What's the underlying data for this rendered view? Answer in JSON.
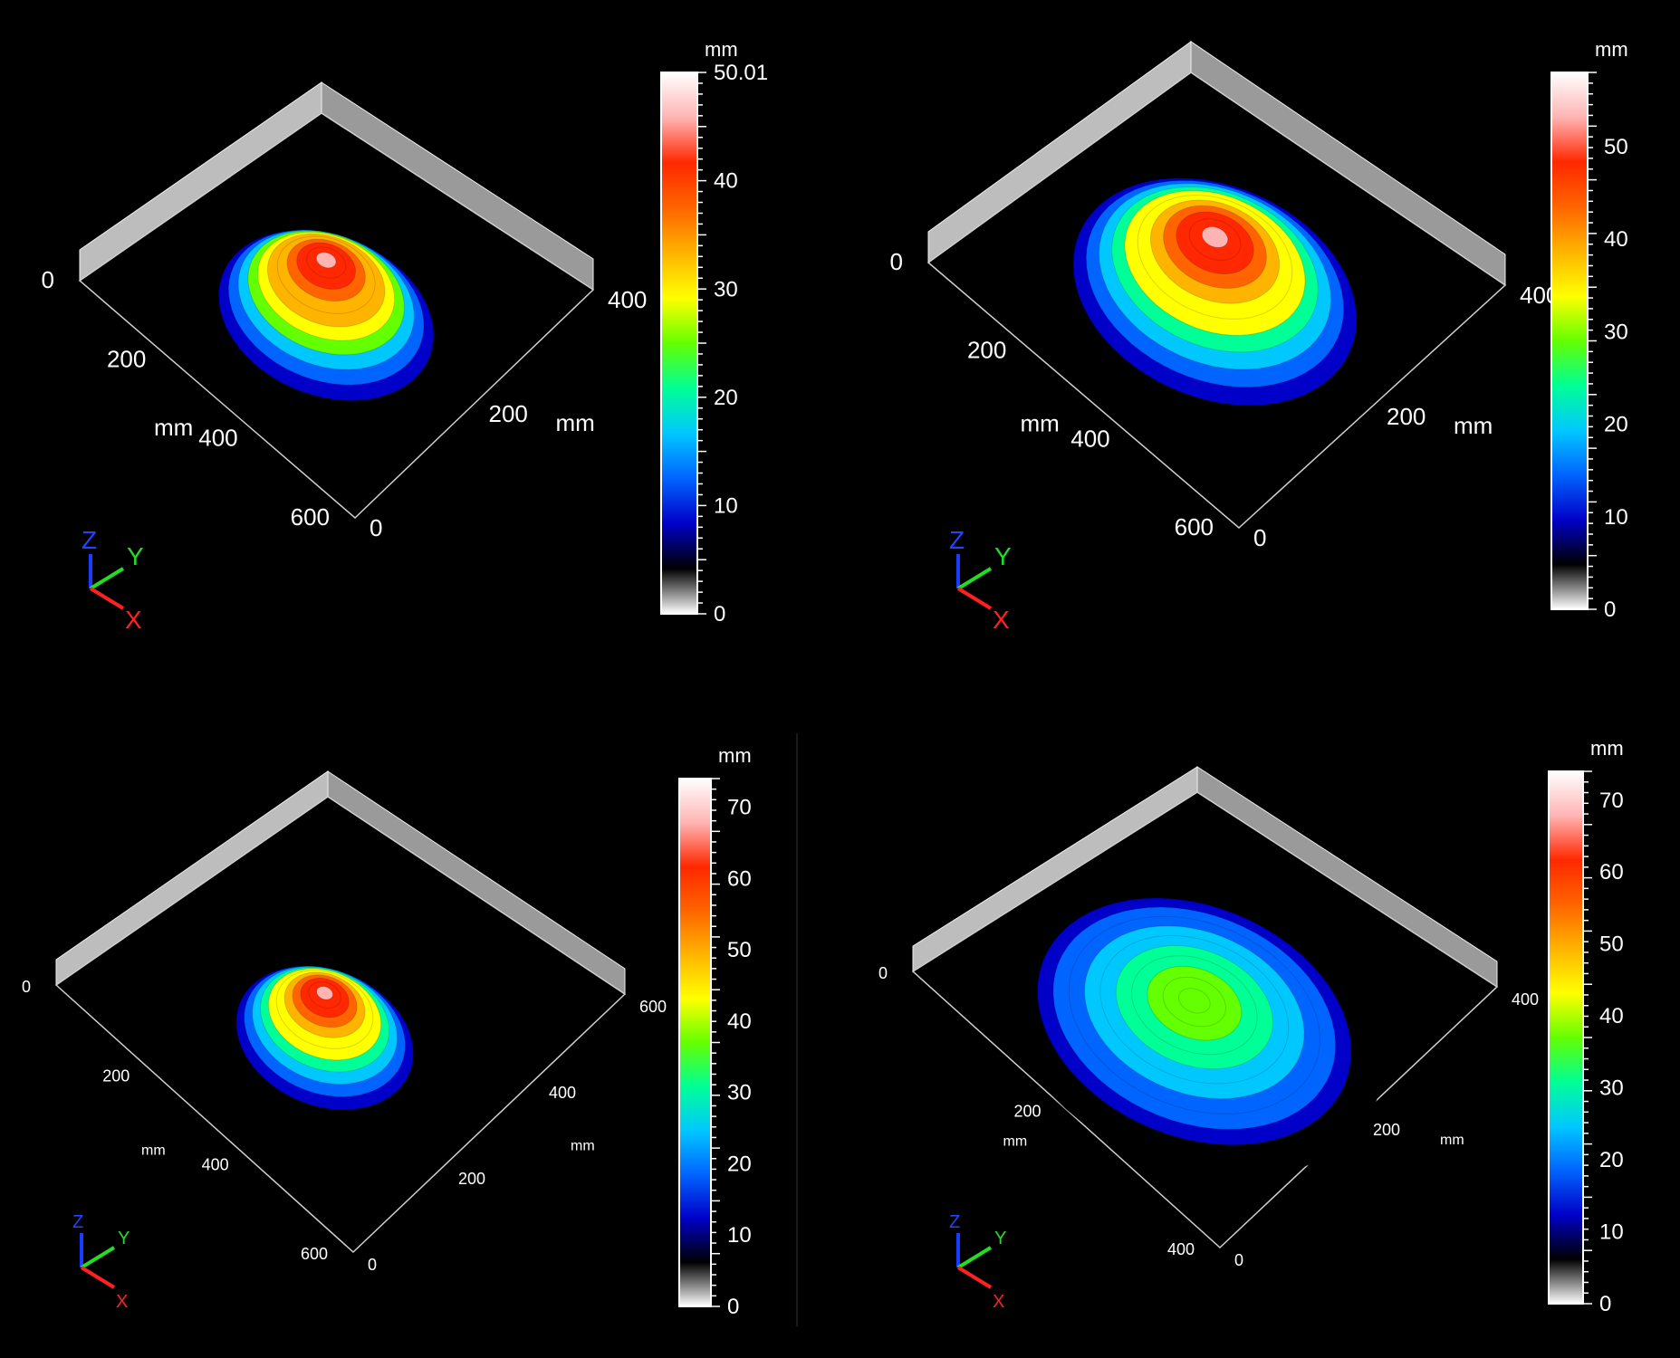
{
  "colormap": [
    "#ffffff",
    "#000000",
    "#0000c8",
    "#0064ff",
    "#00c8ff",
    "#00ff96",
    "#64ff00",
    "#ffff00",
    "#ffb400",
    "#ff6400",
    "#ff2800",
    "#ffb4b4",
    "#ffffff"
  ],
  "chart_data": [
    {
      "type": "heatmap",
      "title": "",
      "unit": "mm",
      "zlim": [
        0,
        50.01
      ],
      "colorbar_ticks": [
        "0",
        "10",
        "20",
        "30",
        "40",
        "50.01"
      ],
      "x_ticks": [
        "0",
        "200",
        "400",
        "600"
      ],
      "y_ticks": [
        "0",
        "200",
        "400"
      ],
      "xlabel": "mm",
      "ylabel": "mm",
      "mound": {
        "center": [
          0.45,
          0.5
        ],
        "radius": 0.32,
        "peak": 48
      },
      "axes_icon": {
        "z": "Z",
        "y": "Y",
        "x": "X"
      }
    },
    {
      "type": "heatmap",
      "title": "",
      "unit": "mm",
      "zlim": [
        0,
        58
      ],
      "colorbar_ticks": [
        "0",
        "10",
        "20",
        "30",
        "40",
        "50"
      ],
      "x_ticks": [
        "0",
        "200",
        "400",
        "600"
      ],
      "y_ticks": [
        "0",
        "200",
        "400"
      ],
      "xlabel": "mm",
      "ylabel": "mm",
      "mound": {
        "center": [
          0.5,
          0.5
        ],
        "radius": 0.38,
        "peak": 55
      },
      "axes_icon": {
        "z": "Z",
        "y": "Y",
        "x": "X"
      }
    },
    {
      "type": "heatmap",
      "title": "",
      "unit": "mm",
      "zlim": [
        0,
        74
      ],
      "colorbar_ticks": [
        "0",
        "10",
        "20",
        "30",
        "40",
        "50",
        "60",
        "70"
      ],
      "x_ticks": [
        "0",
        "200",
        "400",
        "600"
      ],
      "y_ticks": [
        "0",
        "200",
        "400",
        "600"
      ],
      "xlabel": "mm",
      "ylabel": "mm",
      "mound": {
        "center": [
          0.42,
          0.52
        ],
        "radius": 0.24,
        "peak": 70
      },
      "axes_icon": {
        "z": "Z",
        "y": "Y",
        "x": "X"
      }
    },
    {
      "type": "heatmap",
      "title": "",
      "unit": "mm",
      "zlim": [
        0,
        74
      ],
      "colorbar_ticks": [
        "0",
        "10",
        "20",
        "30",
        "40",
        "50",
        "60",
        "70"
      ],
      "x_ticks": [
        "0",
        "200",
        "400"
      ],
      "y_ticks": [
        "0",
        "200",
        "400"
      ],
      "xlabel": "mm",
      "ylabel": "mm",
      "mound": {
        "center": [
          0.45,
          0.5
        ],
        "radius": 0.45,
        "peak": 38
      },
      "axes_icon": {
        "z": "Z",
        "y": "Y",
        "x": "X"
      }
    }
  ]
}
